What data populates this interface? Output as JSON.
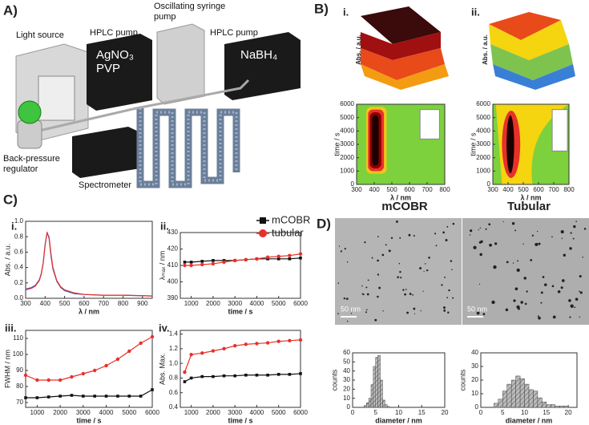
{
  "panel_labels": {
    "a": "A)",
    "b": "B)",
    "c": "C)",
    "d": "D)"
  },
  "subpanel_labels": {
    "b_i": "i.",
    "b_ii": "ii.",
    "c_i": "i.",
    "c_ii": "ii.",
    "c_iii": "iii.",
    "c_iv": "iv."
  },
  "setup": {
    "light_source": "Light source",
    "hplc_pump_1": "HPLC pump",
    "syringe_pump": "Oscillating syringe pump",
    "hplc_pump_2": "HPLC pump",
    "agno3_pvp": "AgNO₃ PVP",
    "nabh4": "NaBH₄",
    "back_pressure": "Back-pressure regulator",
    "spectrometer": "Spectrometer"
  },
  "surface_ylabel": "Abs. / a.u.",
  "reactor_names": [
    "mCOBR",
    "Tubular"
  ],
  "scale_bars": [
    "50 nm",
    "50 nm"
  ],
  "chart_data": [
    {
      "type": "contour",
      "xlabel": "λ / nm",
      "ylabel": "time / s",
      "xlim": [
        300,
        800
      ],
      "ylim": [
        0,
        6000
      ],
      "xticks": [
        300,
        400,
        500,
        600,
        700,
        800
      ],
      "yticks": [
        0,
        1000,
        2000,
        3000,
        4000,
        5000,
        6000
      ]
    },
    {
      "type": "contour",
      "xlabel": "λ / nm",
      "ylabel": "time / s",
      "xlim": [
        300,
        800
      ],
      "ylim": [
        0,
        6000
      ],
      "xticks": [
        300,
        400,
        500,
        600,
        700,
        800
      ],
      "yticks": [
        0,
        1000,
        2000,
        3000,
        4000,
        5000,
        6000
      ]
    },
    {
      "type": "line",
      "xlabel": "λ / nm",
      "ylabel": "Abs. / a.u.",
      "xlim": [
        300,
        950
      ],
      "ylim": [
        0,
        1
      ],
      "xticks": [
        300,
        400,
        500,
        600,
        700,
        800,
        900
      ],
      "yticks": [
        {
          "value": 0,
          "label": "0.0"
        },
        0.2,
        0.4,
        0.6,
        0.8,
        {
          "value": 1,
          "label": "1.0"
        }
      ],
      "x": [
        300,
        330,
        350,
        370,
        380,
        390,
        400,
        410,
        420,
        430,
        440,
        460,
        480,
        500,
        550,
        600,
        700,
        800,
        950
      ],
      "series": [
        {
          "color": "#3a5fcd",
          "values": [
            0.12,
            0.14,
            0.17,
            0.24,
            0.32,
            0.46,
            0.7,
            0.86,
            0.78,
            0.55,
            0.38,
            0.22,
            0.14,
            0.1,
            0.06,
            0.05,
            0.04,
            0.04,
            0.03
          ]
        },
        {
          "color": "#e8302a",
          "values": [
            0.11,
            0.13,
            0.16,
            0.23,
            0.31,
            0.45,
            0.69,
            0.85,
            0.8,
            0.58,
            0.4,
            0.23,
            0.15,
            0.11,
            0.07,
            0.05,
            0.04,
            0.04,
            0.03
          ]
        }
      ]
    },
    {
      "type": "line",
      "xlabel": "time / s",
      "ylabel": "λₘₐₓ / nm",
      "xlim": [
        500,
        6000
      ],
      "ylim": [
        390,
        430
      ],
      "xticks": [
        1000,
        2000,
        3000,
        4000,
        5000,
        6000
      ],
      "yticks": [
        390,
        400,
        410,
        420,
        430
      ],
      "legend": "upper right",
      "x": [
        700,
        1000,
        1500,
        2000,
        2500,
        3000,
        3500,
        4000,
        4500,
        5000,
        5500,
        6000
      ],
      "series": [
        {
          "name": "mCOBR",
          "color": "#111111",
          "marker": "square",
          "values": [
            412,
            412,
            412.5,
            413,
            413,
            413,
            413.5,
            414,
            414,
            414,
            414,
            414.5
          ]
        },
        {
          "name": "tubular",
          "color": "#e8302a",
          "marker": "circle",
          "values": [
            410,
            410,
            410.5,
            411,
            412,
            413,
            413.5,
            414,
            415,
            415.5,
            416,
            417
          ]
        }
      ]
    },
    {
      "type": "line",
      "xlabel": "time / s",
      "ylabel": "FWHM / nm",
      "xlim": [
        500,
        6000
      ],
      "ylim": [
        67,
        115
      ],
      "xticks": [
        1000,
        2000,
        3000,
        4000,
        5000,
        6000
      ],
      "yticks": [
        70,
        80,
        90,
        100,
        110
      ],
      "x": [
        500,
        1000,
        1500,
        2000,
        2500,
        3000,
        3500,
        4000,
        4500,
        5000,
        5500,
        6000
      ],
      "series": [
        {
          "color": "#111111",
          "marker": "square",
          "values": [
            73,
            73,
            73.5,
            74,
            74.5,
            74,
            74,
            74,
            74,
            74,
            74,
            78
          ]
        },
        {
          "color": "#e8302a",
          "marker": "circle",
          "values": [
            87,
            84,
            84,
            84,
            86,
            88,
            90,
            93,
            97,
            102,
            107,
            111
          ]
        }
      ]
    },
    {
      "type": "line",
      "xlabel": "time / s",
      "ylabel": "Abs. Max.",
      "xlim": [
        500,
        6000
      ],
      "ylim": [
        0.4,
        1.45
      ],
      "xticks": [
        1000,
        2000,
        3000,
        4000,
        5000,
        6000
      ],
      "yticks": [
        0.4,
        0.6,
        0.8,
        {
          "value": 1,
          "label": "1.0"
        },
        1.2,
        1.4
      ],
      "x": [
        700,
        1000,
        1500,
        2000,
        2500,
        3000,
        3500,
        4000,
        4500,
        5000,
        5500,
        6000
      ],
      "series": [
        {
          "color": "#111111",
          "marker": "square",
          "values": [
            0.75,
            0.8,
            0.82,
            0.82,
            0.83,
            0.83,
            0.84,
            0.84,
            0.84,
            0.85,
            0.85,
            0.86
          ]
        },
        {
          "color": "#e8302a",
          "marker": "circle",
          "values": [
            0.88,
            1.12,
            1.14,
            1.17,
            1.2,
            1.24,
            1.26,
            1.27,
            1.28,
            1.3,
            1.31,
            1.32
          ]
        }
      ]
    },
    {
      "type": "histogram",
      "xlabel": "diameter / nm",
      "ylabel": "counts",
      "xlim": [
        0,
        20
      ],
      "ylim": [
        0,
        60
      ],
      "xticks": [
        0,
        5,
        10,
        15,
        20
      ],
      "yticks": [
        0,
        10,
        20,
        30,
        40,
        50,
        60
      ],
      "bins": [
        2.5,
        3,
        3.5,
        4,
        4.5,
        5,
        5.5,
        6,
        6.5,
        7,
        7.5,
        8
      ],
      "counts": [
        2,
        5,
        10,
        25,
        45,
        55,
        57,
        30,
        8,
        3,
        1
      ]
    },
    {
      "type": "histogram",
      "xlabel": "diameter / nm",
      "ylabel": "counts",
      "xlim": [
        0,
        22
      ],
      "ylim": [
        0,
        40
      ],
      "xticks": [
        0,
        5,
        10,
        15,
        20
      ],
      "yticks": [
        0,
        10,
        20,
        30,
        40
      ],
      "bins": [
        3,
        4,
        5,
        6,
        7,
        8,
        9,
        10,
        11,
        12,
        13,
        14,
        15,
        16,
        17,
        18,
        19,
        20
      ],
      "counts": [
        3,
        6,
        12,
        17,
        20,
        23,
        21,
        17,
        13,
        12,
        7,
        4,
        2,
        2,
        1,
        1,
        1
      ]
    }
  ]
}
